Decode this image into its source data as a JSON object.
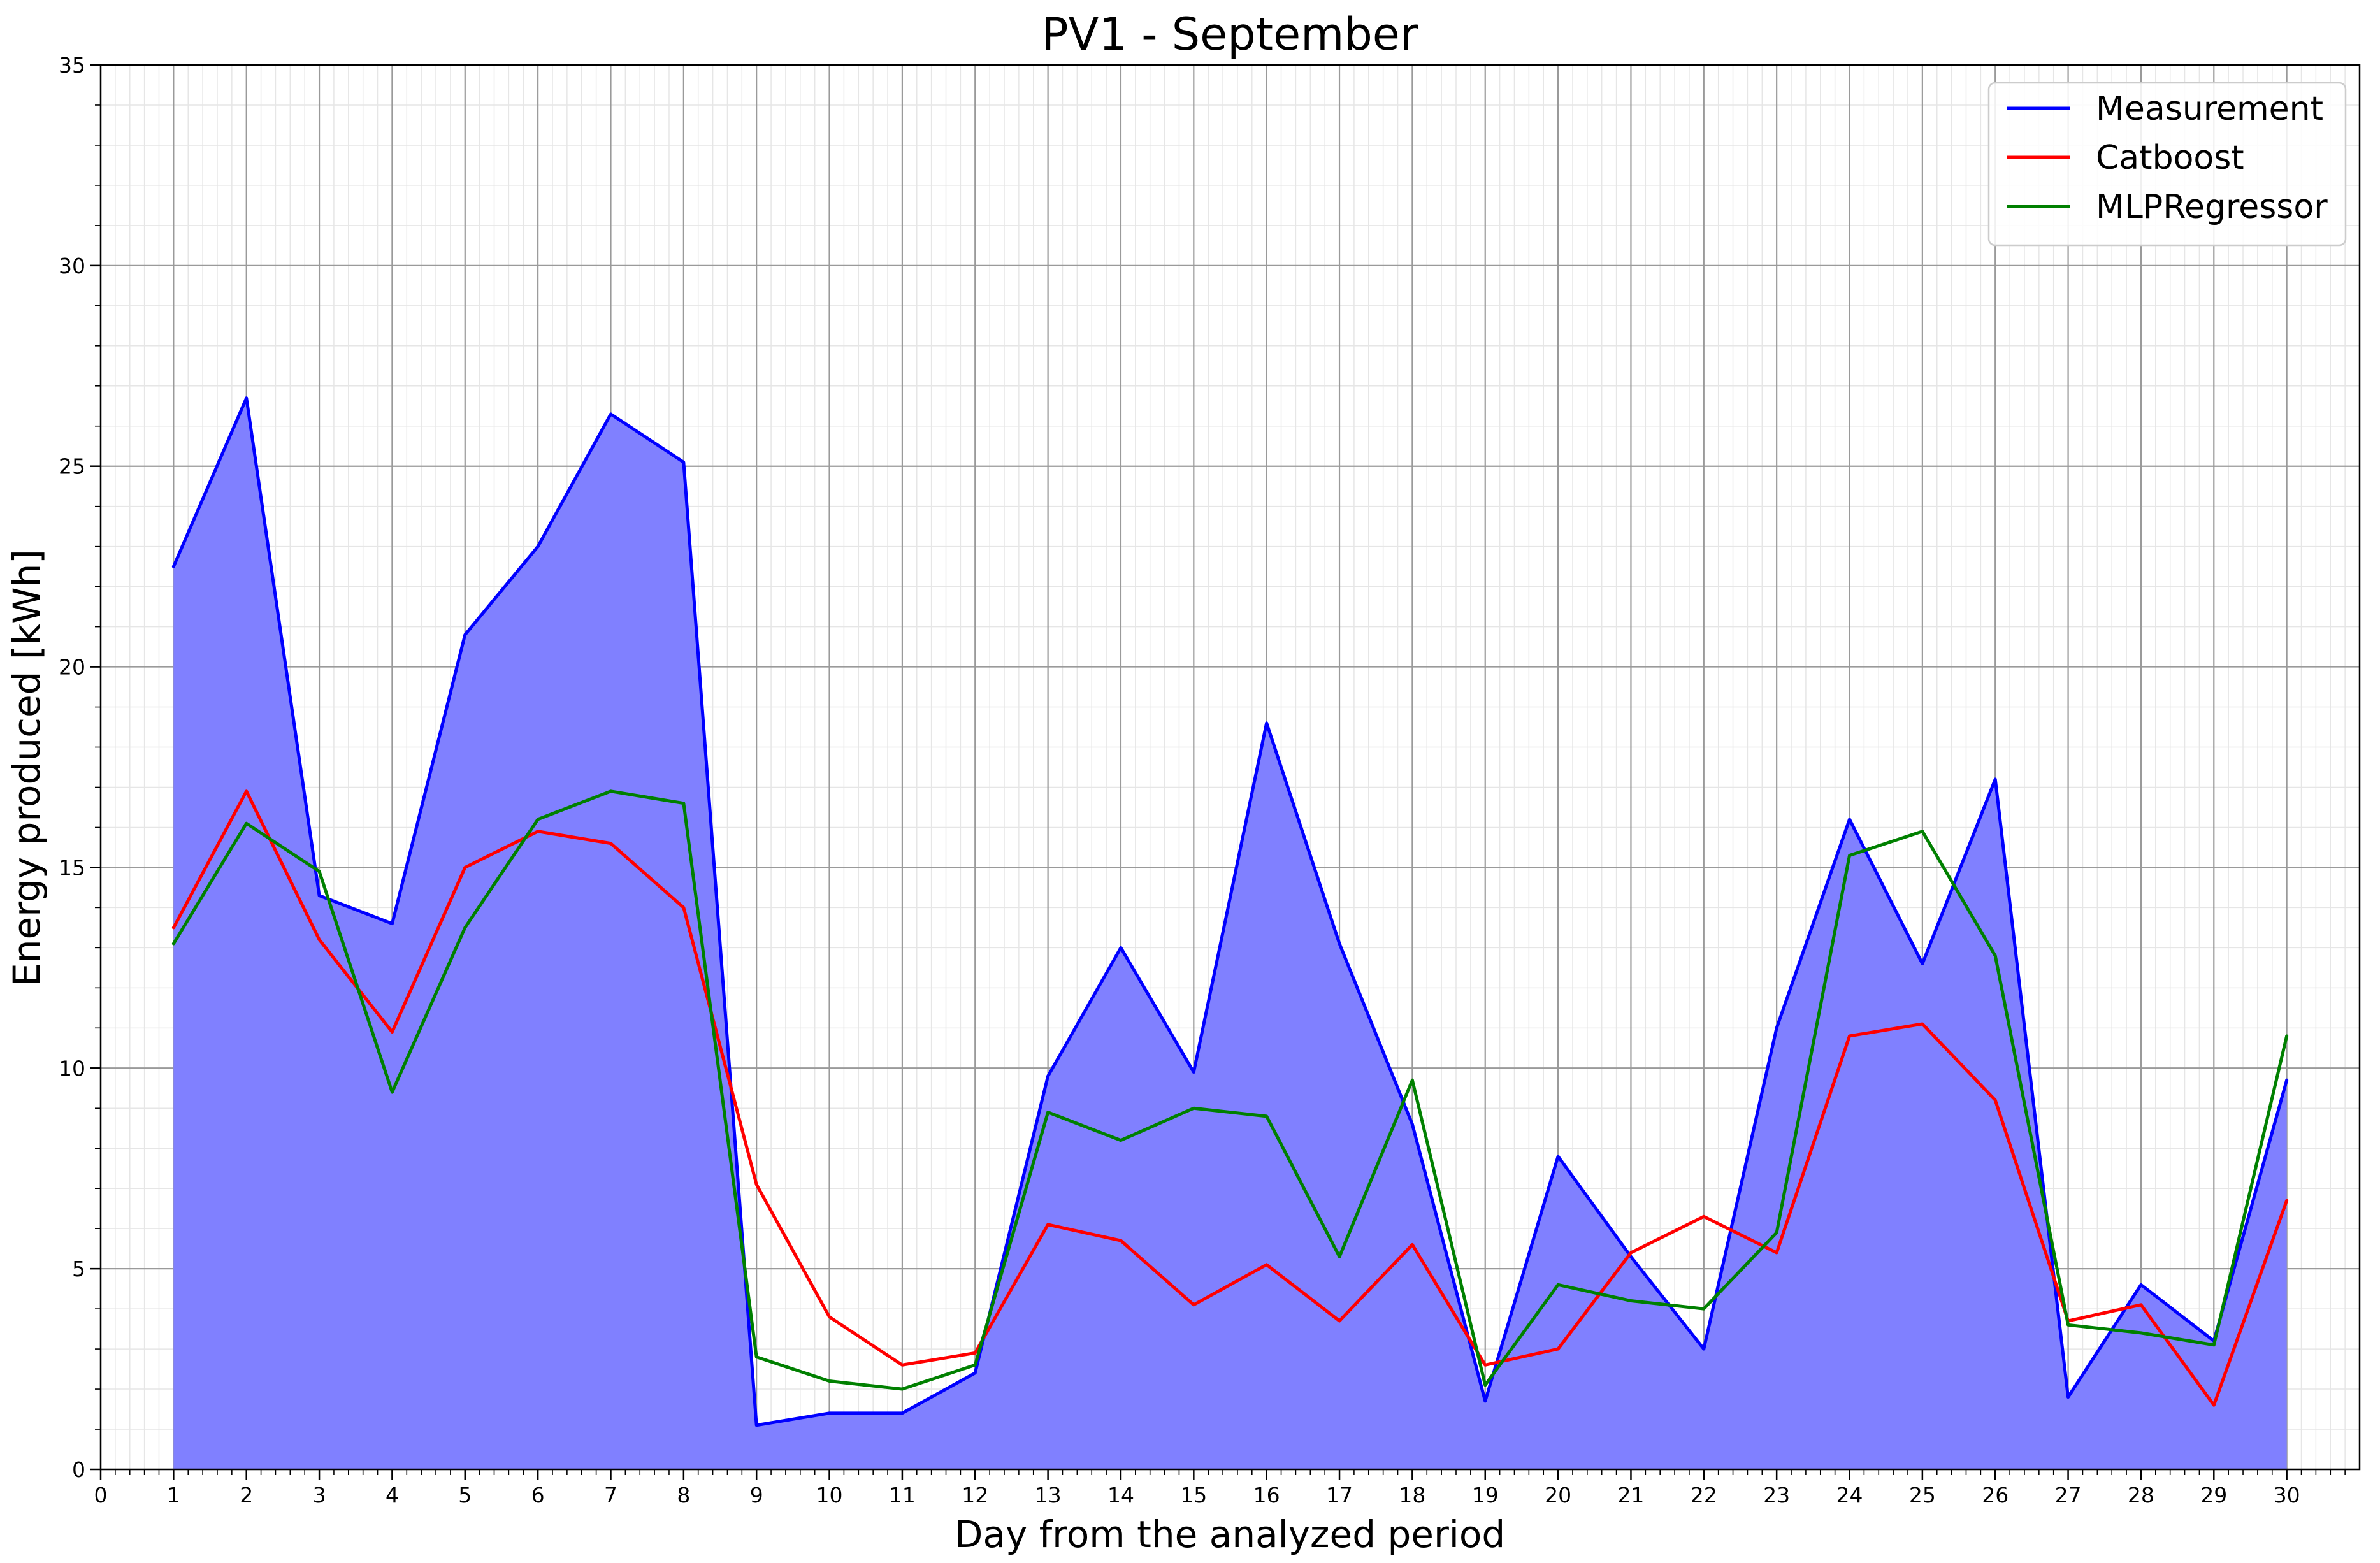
{
  "chart_data": {
    "type": "line",
    "title": "PV1 - September",
    "xlabel": "Day from the analyzed period",
    "ylabel": "Energy produced [kWh]",
    "xlim": [
      0,
      31
    ],
    "ylim": [
      0,
      35
    ],
    "x_ticks": [
      0,
      1,
      2,
      3,
      4,
      5,
      6,
      7,
      8,
      9,
      10,
      11,
      12,
      13,
      14,
      15,
      16,
      17,
      18,
      19,
      20,
      21,
      22,
      23,
      24,
      25,
      26,
      27,
      28,
      29,
      30
    ],
    "y_ticks": [
      0,
      5,
      10,
      15,
      20,
      25,
      30,
      35
    ],
    "grid": "major and minor",
    "legend_position": "top-right",
    "x": [
      1,
      2,
      3,
      4,
      5,
      6,
      7,
      8,
      9,
      10,
      11,
      12,
      13,
      14,
      15,
      16,
      17,
      18,
      19,
      20,
      21,
      22,
      23,
      24,
      25,
      26,
      27,
      28,
      29,
      30
    ],
    "series": [
      {
        "name": "Measurement",
        "color": "#0000ff",
        "fill": "#8080ff",
        "values": [
          22.5,
          26.7,
          14.3,
          13.6,
          20.8,
          23.0,
          26.3,
          25.1,
          1.1,
          1.4,
          1.4,
          2.4,
          9.8,
          13.0,
          9.9,
          18.6,
          13.1,
          8.6,
          1.7,
          7.8,
          5.3,
          3.0,
          11.0,
          16.2,
          12.6,
          17.2,
          1.8,
          4.6,
          3.2,
          9.7
        ]
      },
      {
        "name": "Catboost",
        "color": "#ff0000",
        "values": [
          13.5,
          16.9,
          13.2,
          10.9,
          15.0,
          15.9,
          15.6,
          14.0,
          7.1,
          3.8,
          2.6,
          2.9,
          6.1,
          5.7,
          4.1,
          5.1,
          3.7,
          5.6,
          2.6,
          3.0,
          5.4,
          6.3,
          5.4,
          10.8,
          11.1,
          9.2,
          3.7,
          4.1,
          1.6,
          6.7
        ]
      },
      {
        "name": "MLPRegressor",
        "color": "#008000",
        "values": [
          13.1,
          16.1,
          14.9,
          9.4,
          13.5,
          16.2,
          16.9,
          16.6,
          2.8,
          2.2,
          2.0,
          2.6,
          8.9,
          8.2,
          9.0,
          8.8,
          5.3,
          9.7,
          2.1,
          4.6,
          4.2,
          4.0,
          5.9,
          15.3,
          15.9,
          12.8,
          3.6,
          3.4,
          3.1,
          10.8
        ]
      }
    ]
  }
}
